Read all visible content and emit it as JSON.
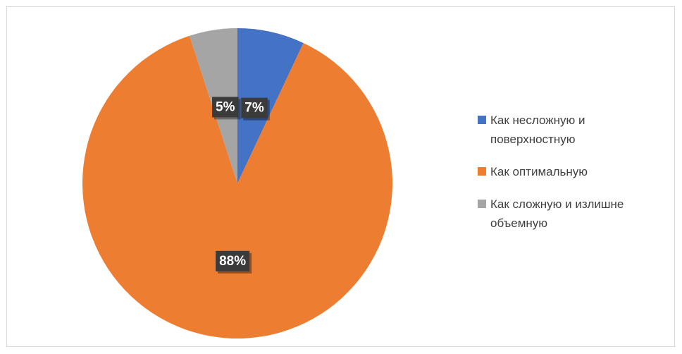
{
  "chart_data": {
    "type": "pie",
    "categories": [
      "Как несложную и поверхностную",
      "Как оптимальную",
      "Как сложную и излишне объемную"
    ],
    "values": [
      7,
      88,
      5
    ],
    "value_labels": [
      "7%",
      "88%",
      "5%"
    ],
    "colors": [
      "#4472c4",
      "#ed7d31",
      "#a5a5a5"
    ],
    "legend": "right"
  }
}
